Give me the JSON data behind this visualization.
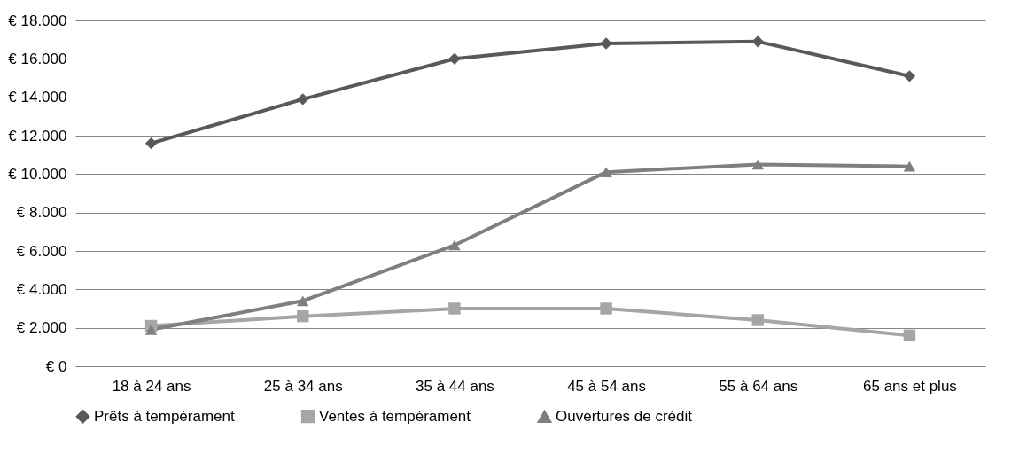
{
  "chart_data": {
    "type": "line",
    "categories": [
      "18 à 24 ans",
      "25 à 34 ans",
      "35 à 44 ans",
      "45 à 54 ans",
      "55 à 64 ans",
      "65 ans et plus"
    ],
    "series": [
      {
        "name": "Prêts à tempérament",
        "color": "#595959",
        "marker": "diamond",
        "values": [
          11600,
          13900,
          16000,
          16800,
          16900,
          15100
        ]
      },
      {
        "name": "Ventes à tempérament",
        "color": "#a6a6a6",
        "marker": "square",
        "values": [
          2100,
          2600,
          3000,
          3000,
          2400,
          1600
        ]
      },
      {
        "name": "Ouvertures de crédit",
        "color": "#7f7f7f",
        "marker": "triangle",
        "values": [
          1900,
          3400,
          6300,
          10100,
          10500,
          10400
        ]
      }
    ],
    "ylim": [
      0,
      18000
    ],
    "yticks": [
      {
        "value": 0,
        "label": "€ 0"
      },
      {
        "value": 2000,
        "label": "€ 2.000"
      },
      {
        "value": 4000,
        "label": "€ 4.000"
      },
      {
        "value": 6000,
        "label": "€ 6.000"
      },
      {
        "value": 8000,
        "label": "€ 8.000"
      },
      {
        "value": 10000,
        "label": "€ 10.000"
      },
      {
        "value": 12000,
        "label": "€ 12.000"
      },
      {
        "value": 14000,
        "label": "€ 14.000"
      },
      {
        "value": 16000,
        "label": "€ 16.000"
      },
      {
        "value": 18000,
        "label": "€ 18.000"
      }
    ],
    "grid": "y",
    "legend": "bottom",
    "line_style": "solid"
  }
}
